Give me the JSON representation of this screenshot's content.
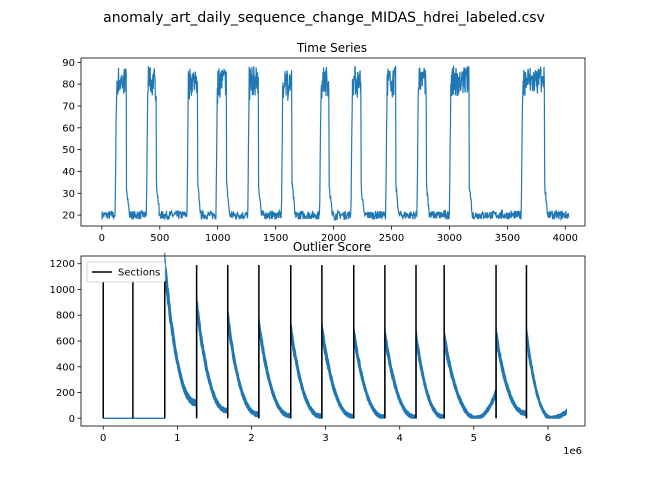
{
  "figure": {
    "title": "anomaly_art_daily_sequence_change_MIDAS_hdrei_labeled.csv"
  },
  "colors": {
    "series": "#1f77b4",
    "sections": "#000000",
    "axis": "#000000"
  },
  "chart_data": [
    {
      "type": "line",
      "title": "Time Series",
      "xlabel": "",
      "ylabel": "",
      "xlim": [
        -180,
        4170
      ],
      "ylim": [
        15,
        92
      ],
      "xticks": [
        0,
        500,
        1000,
        1500,
        2000,
        2500,
        3000,
        3500,
        4000
      ],
      "yticks": [
        20,
        30,
        40,
        50,
        60,
        70,
        80,
        90
      ],
      "grid": false,
      "baseline": 20,
      "high_level": 80,
      "high_segments": [
        [
          115,
          210
        ],
        [
          385,
          470
        ],
        [
          735,
          825
        ],
        [
          985,
          1075
        ],
        [
          1260,
          1350
        ],
        [
          1550,
          1640
        ],
        [
          1880,
          1960
        ],
        [
          2150,
          2235
        ],
        [
          2450,
          2535
        ],
        [
          2720,
          2800
        ],
        [
          3000,
          3170
        ],
        [
          3620,
          3820
        ]
      ],
      "x_range": [
        0,
        4030
      ]
    },
    {
      "type": "line",
      "title": "Outlier Score",
      "xlabel": "",
      "ylabel": "",
      "x_multiplier_label": "1e6",
      "xlim": [
        -0.3,
        6.5
      ],
      "ylim": [
        -60,
        1260
      ],
      "xticks": [
        0,
        1,
        2,
        3,
        4,
        5,
        6
      ],
      "yticks": [
        0,
        200,
        400,
        600,
        800,
        1000,
        1200
      ],
      "grid": false,
      "legend": {
        "position": "top-left",
        "entries": [
          "Sections"
        ]
      },
      "sections_x": [
        0.0,
        0.4,
        0.83,
        1.26,
        1.68,
        2.1,
        2.53,
        2.95,
        3.38,
        3.8,
        4.22,
        4.6,
        5.3,
        5.71
      ],
      "sections_height": 1190,
      "flat_zero_range": [
        0.0,
        0.83
      ],
      "decay_segments": [
        {
          "x0": 0.83,
          "x1": 1.26,
          "peak": 1190,
          "end": 120
        },
        {
          "x0": 1.26,
          "x1": 1.68,
          "peak": 880,
          "end": 60
        },
        {
          "x0": 1.68,
          "x1": 2.1,
          "peak": 780,
          "end": 30
        },
        {
          "x0": 2.1,
          "x1": 2.53,
          "peak": 730,
          "end": 20
        },
        {
          "x0": 2.53,
          "x1": 2.95,
          "peak": 690,
          "end": 15
        },
        {
          "x0": 2.95,
          "x1": 3.38,
          "peak": 690,
          "end": 15
        },
        {
          "x0": 3.38,
          "x1": 3.8,
          "peak": 660,
          "end": 10
        },
        {
          "x0": 3.8,
          "x1": 4.22,
          "peak": 650,
          "end": 10
        },
        {
          "x0": 4.22,
          "x1": 4.6,
          "peak": 640,
          "end": 10
        },
        {
          "x0": 4.6,
          "x1": 5.3,
          "peak": 620,
          "end": 200,
          "bowl": true
        },
        {
          "x0": 5.3,
          "x1": 5.71,
          "peak": 650,
          "end": 40
        },
        {
          "x0": 5.71,
          "x1": 6.25,
          "peak": 650,
          "end": 50,
          "bowl": true
        }
      ]
    }
  ]
}
